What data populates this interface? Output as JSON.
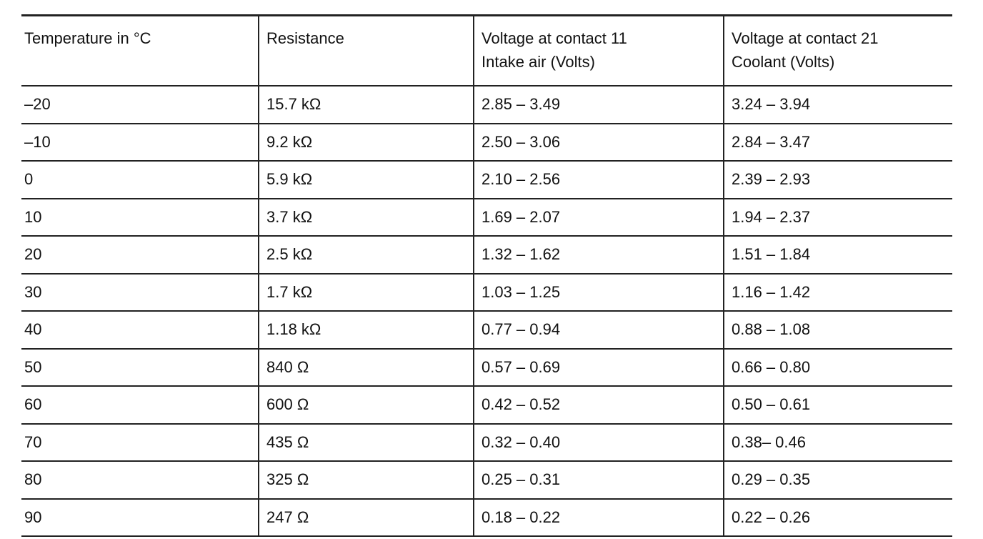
{
  "table": {
    "header": [
      "Temperature in °C",
      "Resistance",
      "Voltage at contact 11\nIntake air (Volts)",
      "Voltage at contact 21\nCoolant (Volts)"
    ],
    "rows": [
      [
        "–20",
        "15.7 kΩ",
        "2.85 – 3.49",
        "3.24 – 3.94"
      ],
      [
        "–10",
        "9.2 kΩ",
        "2.50 – 3.06",
        "2.84 – 3.47"
      ],
      [
        "0",
        "5.9 kΩ",
        "2.10 – 2.56",
        "2.39 – 2.93"
      ],
      [
        "10",
        "3.7 kΩ",
        "1.69 – 2.07",
        "1.94 – 2.37"
      ],
      [
        "20",
        "2.5 kΩ",
        "1.32 – 1.62",
        "1.51 – 1.84"
      ],
      [
        "30",
        "1.7 kΩ",
        "1.03 – 1.25",
        "1.16 – 1.42"
      ],
      [
        "40",
        "1.18 kΩ",
        "0.77 – 0.94",
        "0.88 – 1.08"
      ],
      [
        "50",
        "840 Ω",
        "0.57 – 0.69",
        "0.66 – 0.80"
      ],
      [
        "60",
        "600 Ω",
        "0.42 – 0.52",
        "0.50 – 0.61"
      ],
      [
        "70",
        "435 Ω",
        "0.32 – 0.40",
        "0.38– 0.46"
      ],
      [
        "80",
        "325 Ω",
        "0.25 – 0.31",
        "0.29 – 0.35"
      ],
      [
        "90",
        "247 Ω",
        "0.18 – 0.22",
        "0.22 – 0.26"
      ]
    ]
  }
}
